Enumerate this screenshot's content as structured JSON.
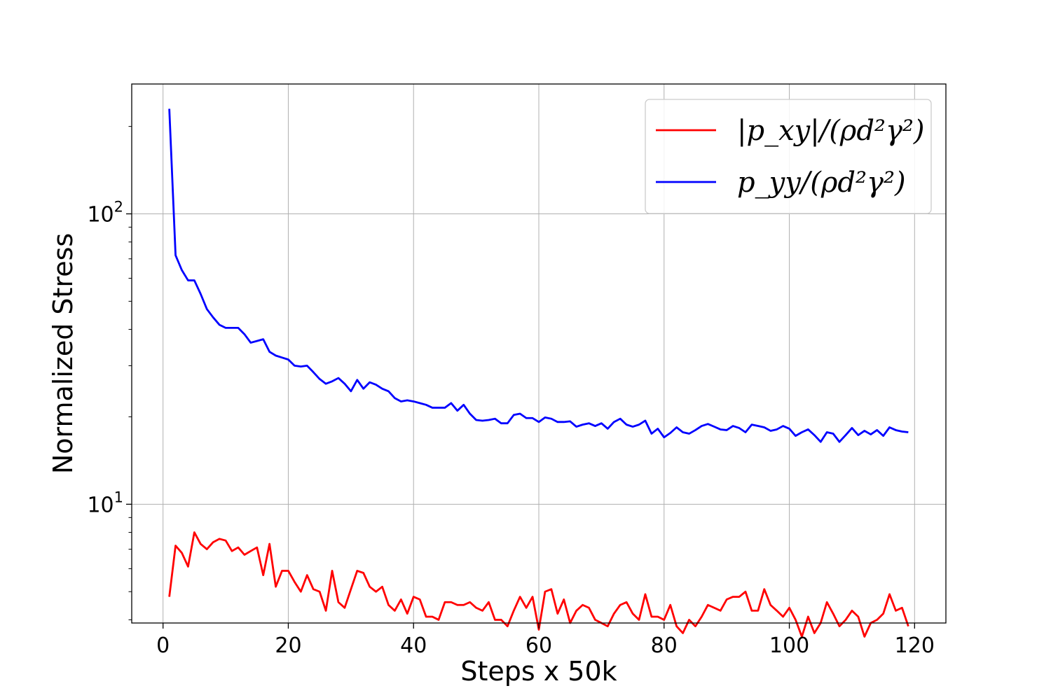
{
  "chart_data": {
    "type": "line",
    "xlabel": "Steps x 50k",
    "ylabel": "Normalized Stress",
    "xlim": [
      -5,
      125
    ],
    "ylim": [
      3.9,
      280
    ],
    "yscale": "log",
    "grid": true,
    "legend_position": "top-right",
    "x_ticks": [
      "0",
      "20",
      "40",
      "60",
      "80",
      "100",
      "120"
    ],
    "y_ticks": [
      {
        "base": "10",
        "exp": "2",
        "value": 100
      },
      {
        "base": "10",
        "exp": "1",
        "value": 10
      }
    ],
    "series": [
      {
        "name": "|p_xy|/(ρd²γ²)",
        "color": "#ff0000",
        "x_start": 1,
        "values": [
          4.8,
          7.2,
          6.8,
          6.1,
          8.0,
          7.3,
          7.0,
          7.4,
          7.6,
          7.5,
          6.9,
          7.1,
          6.7,
          6.9,
          7.1,
          5.7,
          7.3,
          5.2,
          5.9,
          5.9,
          5.4,
          5.0,
          5.7,
          5.1,
          5.0,
          4.3,
          5.9,
          4.6,
          4.4,
          5.1,
          5.9,
          5.8,
          5.2,
          5.0,
          5.2,
          4.5,
          4.3,
          4.7,
          4.2,
          4.8,
          4.7,
          4.1,
          4.1,
          4.0,
          4.6,
          4.6,
          4.5,
          4.5,
          4.6,
          4.4,
          4.3,
          4.6,
          4.0,
          4.0,
          3.8,
          4.3,
          4.8,
          4.4,
          4.8,
          3.7,
          5.0,
          5.1,
          4.2,
          4.7,
          3.9,
          4.3,
          4.5,
          4.4,
          4.0,
          3.9,
          3.8,
          4.2,
          4.5,
          4.6,
          4.2,
          4.0,
          4.9,
          4.1,
          4.1,
          4.0,
          4.5,
          3.8,
          3.6,
          4.0,
          3.8,
          4.1,
          4.5,
          4.4,
          4.3,
          4.7,
          4.8,
          4.8,
          5.0,
          4.3,
          4.3,
          5.1,
          4.5,
          4.3,
          4.1,
          4.4,
          4.0,
          3.5,
          4.1,
          3.6,
          3.9,
          4.6,
          4.2,
          3.8,
          4.0,
          4.3,
          4.1,
          3.5,
          3.9,
          4.0,
          4.2,
          4.9,
          4.3,
          4.4,
          3.8
        ]
      },
      {
        "name": "p_yy/(ρd²γ²)",
        "color": "#0000ff",
        "x_start": 1,
        "values": [
          230,
          72,
          64,
          59,
          59,
          53,
          47,
          44,
          41.5,
          40.5,
          40.5,
          40.5,
          38.5,
          36,
          36.5,
          37,
          33.5,
          32.5,
          32,
          31.5,
          30,
          29.8,
          30,
          28.5,
          27,
          26,
          26.5,
          27.2,
          26,
          24.5,
          26.8,
          25,
          26.3,
          25.8,
          25,
          24.5,
          23.2,
          22.6,
          22.8,
          22.6,
          22.3,
          22,
          21.5,
          21.5,
          21.5,
          22.3,
          21,
          22,
          20.5,
          19.5,
          19.4,
          19.5,
          19.7,
          19,
          19,
          20.3,
          20.5,
          19.8,
          19.8,
          19.2,
          19.9,
          19.7,
          19.2,
          19.2,
          19.3,
          18.5,
          18.8,
          19,
          18.6,
          19,
          18.2,
          19.2,
          19.7,
          18.8,
          18.5,
          18.8,
          19.4,
          17.5,
          18.2,
          17,
          17.6,
          18.4,
          17.7,
          17.5,
          18,
          18.6,
          18.9,
          18.5,
          18.1,
          18,
          18.6,
          18.3,
          17.7,
          18.8,
          18.6,
          18.4,
          17.9,
          18.1,
          18.6,
          18.2,
          17.2,
          17.7,
          18.1,
          17.3,
          16.4,
          17.7,
          17.5,
          16.4,
          17.3,
          18.3,
          17.3,
          17.9,
          17.4,
          18,
          17.2,
          18.4,
          18,
          17.8,
          17.7
        ]
      }
    ]
  }
}
